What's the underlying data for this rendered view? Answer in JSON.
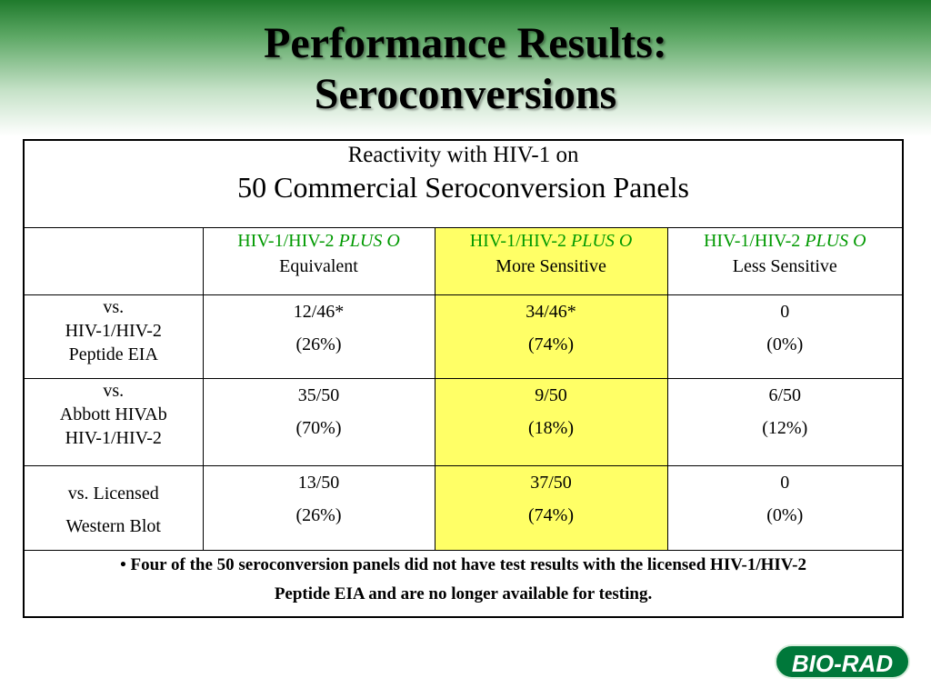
{
  "title": {
    "line1": "Performance Results:",
    "line2": "Seroconversions"
  },
  "table": {
    "caption_line1": "Reactivity with HIV-1 on",
    "caption_line2": "50 Commercial Seroconversion Panels",
    "headers": [
      {
        "prefix": "HIV-1/HIV-2 ",
        "italic": "PLUS O",
        "sub": "Equivalent"
      },
      {
        "prefix": "HIV-1/HIV-2 ",
        "italic": "PLUS O",
        "sub": "More Sensitive"
      },
      {
        "prefix": "HIV-1/HIV-2 ",
        "italic": "PLUS O",
        "sub": "Less Sensitive"
      }
    ],
    "rows": [
      {
        "label": [
          "vs.",
          "HIV-1/HIV-2",
          "Peptide EIA"
        ],
        "cells": [
          {
            "count": "12/46*",
            "pct": "(26%)"
          },
          {
            "count": "34/46*",
            "pct": "(74%)"
          },
          {
            "count": "0",
            "pct": "(0%)"
          }
        ]
      },
      {
        "label": [
          "vs.",
          "Abbott HIVAb",
          "HIV-1/HIV-2"
        ],
        "cells": [
          {
            "count": "35/50",
            "pct": "(70%)"
          },
          {
            "count": "9/50",
            "pct": "(18%)"
          },
          {
            "count": "6/50",
            "pct": "(12%)"
          }
        ]
      },
      {
        "label": [
          "vs. Licensed",
          "Western Blot"
        ],
        "cells": [
          {
            "count": "13/50",
            "pct": "(26%)"
          },
          {
            "count": "37/50",
            "pct": "(74%)"
          },
          {
            "count": "0",
            "pct": "(0%)"
          }
        ]
      }
    ],
    "footnote_line1": "• Four of the 50 seroconversion panels did not have test results with the licensed HIV-1/HIV-2",
    "footnote_line2": "Peptide EIA and are no longer available for testing."
  },
  "logo": {
    "text": "BIO-RAD"
  },
  "colors": {
    "header_green": "#009900",
    "highlight": "#ffff66",
    "logo_green": "#00783a"
  }
}
